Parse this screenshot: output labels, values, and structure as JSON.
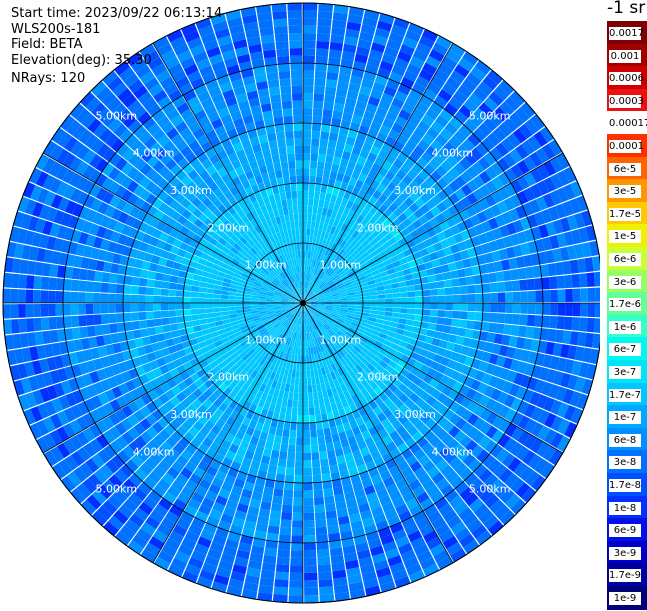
{
  "info": {
    "start_time": "Start time: 2023/09/22 06:13:14",
    "instrument": "WLS200s-181",
    "field": "Field: BETA",
    "elevation": "Elevation(deg): 35.30",
    "nrays": "NRays: 120"
  },
  "colors": {
    "background": "#ffffff",
    "range_label": "#ffffff",
    "grid": "#000000"
  },
  "colorbar": {
    "unit": "-1 sr",
    "ticks": [
      "0.0017",
      "0.001",
      "0.0006",
      "0.0003",
      "0.00017",
      "0.0001",
      "6e-5",
      "3e-5",
      "1.7e-5",
      "1e-5",
      "6e-6",
      "3e-6",
      "1.7e-6",
      "1e-6",
      "6e-7",
      "3e-7",
      "1.7e-7",
      "1e-7",
      "6e-8",
      "3e-8",
      "1.7e-8",
      "1e-8",
      "6e-9",
      "3e-9",
      "1.7e-9",
      "1e-9"
    ],
    "colors": [
      "#7f0000",
      "#a00000",
      "#cc0000",
      "#ee1010",
      "#ffffff",
      "#ff3000",
      "#ff6400",
      "#ff9600",
      "#ffc800",
      "#f0f000",
      "#c8ff37",
      "#96ff64",
      "#64ff96",
      "#37ffc8",
      "#00f8f0",
      "#00e4f8",
      "#00c8ff",
      "#00a8ff",
      "#0090ff",
      "#0070ff",
      "#0050ff",
      "#0030ff",
      "#0010e8",
      "#0000c8",
      "#0000a0",
      "#00007a"
    ]
  },
  "chart_data": {
    "type": "heatmap",
    "subtype": "polar PPI scan",
    "field": "BETA",
    "elevation_deg": 35.3,
    "nrays": 120,
    "range_rings_km": [
      1,
      2,
      3,
      4,
      5
    ],
    "max_range_km": 5.0,
    "ring_labels": [
      "1.00km",
      "2.00km",
      "3.00km",
      "4.00km",
      "5.00km"
    ],
    "spokes_deg": [
      0,
      30,
      60,
      90,
      120,
      150,
      180,
      210,
      240,
      270,
      300,
      330
    ],
    "colorscale": "log",
    "range_profile": [
      {
        "range_km": 0.5,
        "value": "1.7e-7"
      },
      {
        "range_km": 1.5,
        "value": "1.7e-7"
      },
      {
        "range_km": 2.5,
        "value": "1e-7"
      },
      {
        "range_km": 3.5,
        "value": "6e-8"
      },
      {
        "range_km": 4.5,
        "value": "3e-8"
      },
      {
        "range_km": 5.0,
        "value": "3e-8"
      }
    ],
    "grid": true,
    "legend": "right"
  }
}
